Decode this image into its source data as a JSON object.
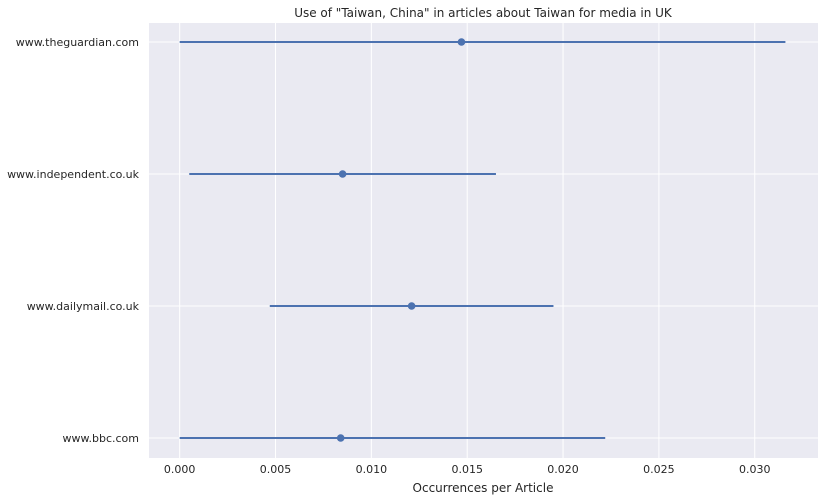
{
  "chart_data": {
    "type": "scatter",
    "title": "Use of \"Taiwan, China\" in articles about Taiwan for media in UK",
    "xlabel": "Occurrences per Article",
    "ylabel": "",
    "xlim": [
      -0.0016,
      0.0333
    ],
    "x_ticks": [
      "0.000",
      "0.005",
      "0.010",
      "0.015",
      "0.020",
      "0.025",
      "0.030"
    ],
    "x_tick_values": [
      0,
      0.005,
      0.01,
      0.015,
      0.02,
      0.025,
      0.03
    ],
    "grid": true,
    "categories": [
      "www.theguardian.com",
      "www.independent.co.uk",
      "www.dailymail.co.uk",
      "www.bbc.com"
    ],
    "series": [
      {
        "values": [
          0.0147,
          0.0085,
          0.0121,
          0.0084
        ],
        "error_low": [
          0.0,
          0.0005,
          0.0047,
          0.0
        ],
        "error_high": [
          0.0316,
          0.0165,
          0.0195,
          0.0222
        ]
      }
    ],
    "colors": {
      "background": "#eaeaf2",
      "grid": "#ffffff",
      "series": "#4c72b0",
      "text": "#262626"
    }
  }
}
